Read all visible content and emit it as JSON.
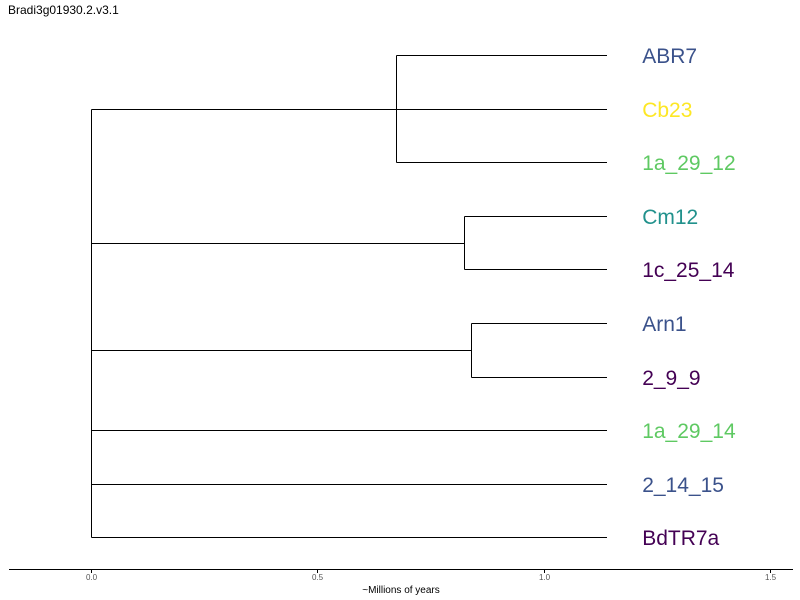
{
  "title": "Bradi3g01930.2.v3.1",
  "chart_data": {
    "type": "dendrogram",
    "xlabel": "~Millions of years",
    "xlim": [
      -0.18,
      1.55
    ],
    "ticks": [
      {
        "value": 0.0,
        "label": "0.0"
      },
      {
        "value": 0.5,
        "label": "0.5"
      },
      {
        "value": 1.0,
        "label": "1.0"
      },
      {
        "value": 1.5,
        "label": "1.5"
      }
    ],
    "tip_depth": 1.14,
    "leaves": [
      {
        "name": "ABR7",
        "color": "#3b528b"
      },
      {
        "name": "Cb23",
        "color": "#fde725"
      },
      {
        "name": "1a_29_12",
        "color": "#5ec962"
      },
      {
        "name": "Cm12",
        "color": "#21918c"
      },
      {
        "name": "1c_25_14",
        "color": "#440154"
      },
      {
        "name": "Arn1",
        "color": "#3b528b"
      },
      {
        "name": "2_9_9",
        "color": "#440154"
      },
      {
        "name": "1a_29_14",
        "color": "#5ec962"
      },
      {
        "name": "2_14_15",
        "color": "#3b528b"
      },
      {
        "name": "BdTR7a",
        "color": "#440154"
      }
    ],
    "clusters": [
      {
        "height": 0.675,
        "members": [
          0,
          1,
          2
        ]
      },
      {
        "height": 0.825,
        "members": [
          3,
          4
        ]
      },
      {
        "height": 0.84,
        "members": [
          5,
          6
        ]
      }
    ],
    "root_height": 0.0
  }
}
